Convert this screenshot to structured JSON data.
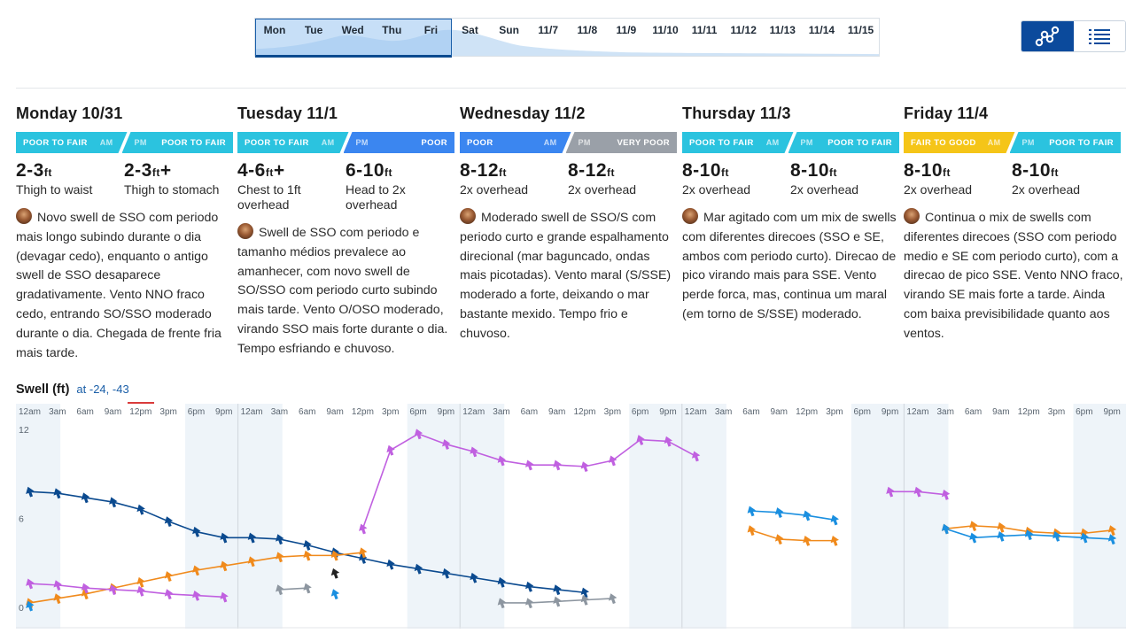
{
  "date_strip": {
    "days": [
      "Mon",
      "Tue",
      "Wed",
      "Thu",
      "Fri",
      "Sat",
      "Sun",
      "11/7",
      "11/8",
      "11/9",
      "11/10",
      "11/11",
      "11/12",
      "11/13",
      "11/14",
      "11/15"
    ],
    "selected_range": [
      "Mon",
      "Fri"
    ]
  },
  "view_toggle": {
    "chart_icon": "graph-icon",
    "list_icon": "list-icon",
    "active": "chart"
  },
  "days": [
    {
      "title": "Monday 10/31",
      "am": {
        "label": "POOR TO FAIR",
        "tag": "AM",
        "color": "#2bc3df"
      },
      "pm": {
        "label": "POOR TO FAIR",
        "tag": "PM",
        "color": "#2bc3df"
      },
      "am_wave": {
        "height": "2-3",
        "unit": "ft",
        "plus": "",
        "desc": "Thigh to waist"
      },
      "pm_wave": {
        "height": "2-3",
        "unit": "ft",
        "plus": "+",
        "desc": "Thigh to stomach"
      },
      "forecast": "Novo swell de SSO com periodo mais longo subindo durante o dia (devagar cedo), enquanto o antigo swell de SSO desaparece gradativamente. Vento NNO fraco cedo, entrando SO/SSO moderado durante o dia. Chegada de frente fria mais tarde."
    },
    {
      "title": "Tuesday 11/1",
      "am": {
        "label": "POOR TO FAIR",
        "tag": "AM",
        "color": "#2bc3df"
      },
      "pm": {
        "label": "POOR",
        "tag": "PM",
        "color": "#3b86f0"
      },
      "am_wave": {
        "height": "4-6",
        "unit": "ft",
        "plus": "+",
        "desc": "Chest to 1ft overhead"
      },
      "pm_wave": {
        "height": "6-10",
        "unit": "ft",
        "plus": "",
        "desc": "Head to 2x overhead"
      },
      "forecast": "Swell de SSO com periodo e tamanho médios prevalece ao amanhecer, com novo swell de SO/SSO com periodo curto subindo mais tarde. Vento O/OSO moderado, virando SSO mais forte durante o dia. Tempo esfriando e chuvoso."
    },
    {
      "title": "Wednesday 11/2",
      "am": {
        "label": "POOR",
        "tag": "AM",
        "color": "#3b86f0"
      },
      "pm": {
        "label": "VERY POOR",
        "tag": "PM",
        "color": "#9aa0a8"
      },
      "am_wave": {
        "height": "8-12",
        "unit": "ft",
        "plus": "",
        "desc": "2x overhead"
      },
      "pm_wave": {
        "height": "8-12",
        "unit": "ft",
        "plus": "",
        "desc": "2x overhead"
      },
      "forecast": "Moderado swell de SSO/S com periodo curto e grande espalhamento direcional (mar baguncado, ondas mais picotadas). Vento maral (S/SSE) moderado a forte, deixando o mar bastante mexido. Tempo frio e chuvoso."
    },
    {
      "title": "Thursday 11/3",
      "am": {
        "label": "POOR TO FAIR",
        "tag": "AM",
        "color": "#2bc3df"
      },
      "pm": {
        "label": "POOR TO FAIR",
        "tag": "PM",
        "color": "#2bc3df"
      },
      "am_wave": {
        "height": "8-10",
        "unit": "ft",
        "plus": "",
        "desc": "2x overhead"
      },
      "pm_wave": {
        "height": "8-10",
        "unit": "ft",
        "plus": "",
        "desc": "2x overhead"
      },
      "forecast": "Mar agitado com um mix de swells com diferentes direcoes (SSO e SE, ambos com periodo curto). Direcao de pico virando mais para SSE. Vento perde forca, mas, continua um maral (em torno de S/SSE) moderado."
    },
    {
      "title": "Friday 11/4",
      "am": {
        "label": "FAIR TO GOOD",
        "tag": "AM",
        "color": "#f5c518"
      },
      "pm": {
        "label": "POOR TO FAIR",
        "tag": "PM",
        "color": "#2bc3df"
      },
      "am_wave": {
        "height": "8-10",
        "unit": "ft",
        "plus": "",
        "desc": "2x overhead"
      },
      "pm_wave": {
        "height": "8-10",
        "unit": "ft",
        "plus": "",
        "desc": "2x overhead"
      },
      "forecast": "Continua o mix de swells com diferentes direcoes (SSO com periodo medio e SE com periodo curto), com a direcao de pico SSE. Vento NNO fraco, virando SE mais forte a tarde. Ainda com baixa previsibilidade quanto aos ventos."
    }
  ],
  "swell": {
    "title": "Swell (ft)",
    "location": "at -24, -43"
  },
  "chart_data": {
    "type": "line",
    "ylabel": "Swell (ft)",
    "ylim": [
      0,
      12
    ],
    "y_ticks": [
      "12",
      "6",
      "0"
    ],
    "x_tick_labels": [
      "12am",
      "3am",
      "6am",
      "9am",
      "12pm",
      "3pm",
      "6pm",
      "9pm"
    ],
    "step_hours": 3,
    "series": [
      {
        "color": "#0b4a8f",
        "segments": [
          [
            0,
            [
              7.8,
              7.7,
              7.4,
              7.1,
              6.6,
              5.8,
              5.1,
              4.7,
              4.7,
              4.6,
              4.2,
              3.7,
              3.3,
              2.9,
              2.6,
              2.3,
              2.0,
              1.7,
              1.4,
              1.2,
              1.0
            ]
          ]
        ]
      },
      {
        "color": "#f08a1c",
        "segments": [
          [
            0,
            [
              0.3,
              0.6,
              0.9,
              1.3,
              1.7,
              2.1,
              2.5,
              2.8,
              3.1,
              3.4,
              3.5,
              3.5,
              3.7
            ]
          ],
          [
            26,
            [
              5.2,
              4.6,
              4.5,
              4.5
            ]
          ],
          [
            33,
            [
              5.3,
              5.5,
              5.4,
              5.1,
              5.0,
              5.0,
              5.2
            ]
          ]
        ]
      },
      {
        "color": "#c060e0",
        "segments": [
          [
            0,
            [
              1.6,
              1.5,
              1.3,
              1.2,
              1.1,
              0.9,
              0.8,
              0.7
            ]
          ],
          [
            12,
            [
              5.3,
              10.6,
              11.7,
              11.0,
              10.5,
              9.9,
              9.6,
              9.6,
              9.5,
              9.9,
              11.3,
              11.2,
              10.2
            ]
          ],
          [
            31,
            [
              7.8,
              7.8,
              7.6
            ]
          ]
        ]
      },
      {
        "color": "#1a8fe0",
        "segments": [
          [
            0,
            [
              0.1
            ]
          ],
          [
            11,
            [
              0.9
            ]
          ],
          [
            26,
            [
              6.5,
              6.4,
              6.2,
              5.9
            ]
          ],
          [
            33,
            [
              5.3,
              4.7,
              4.8,
              4.9,
              4.8,
              4.7,
              4.6
            ]
          ]
        ]
      },
      {
        "color": "#8d96a0",
        "segments": [
          [
            9,
            [
              1.2,
              1.3
            ]
          ],
          [
            17,
            [
              0.3,
              0.3,
              0.4,
              0.5,
              0.6
            ]
          ]
        ]
      },
      {
        "color": "#222222",
        "segments": [
          [
            11,
            [
              2.3
            ]
          ]
        ]
      }
    ]
  }
}
